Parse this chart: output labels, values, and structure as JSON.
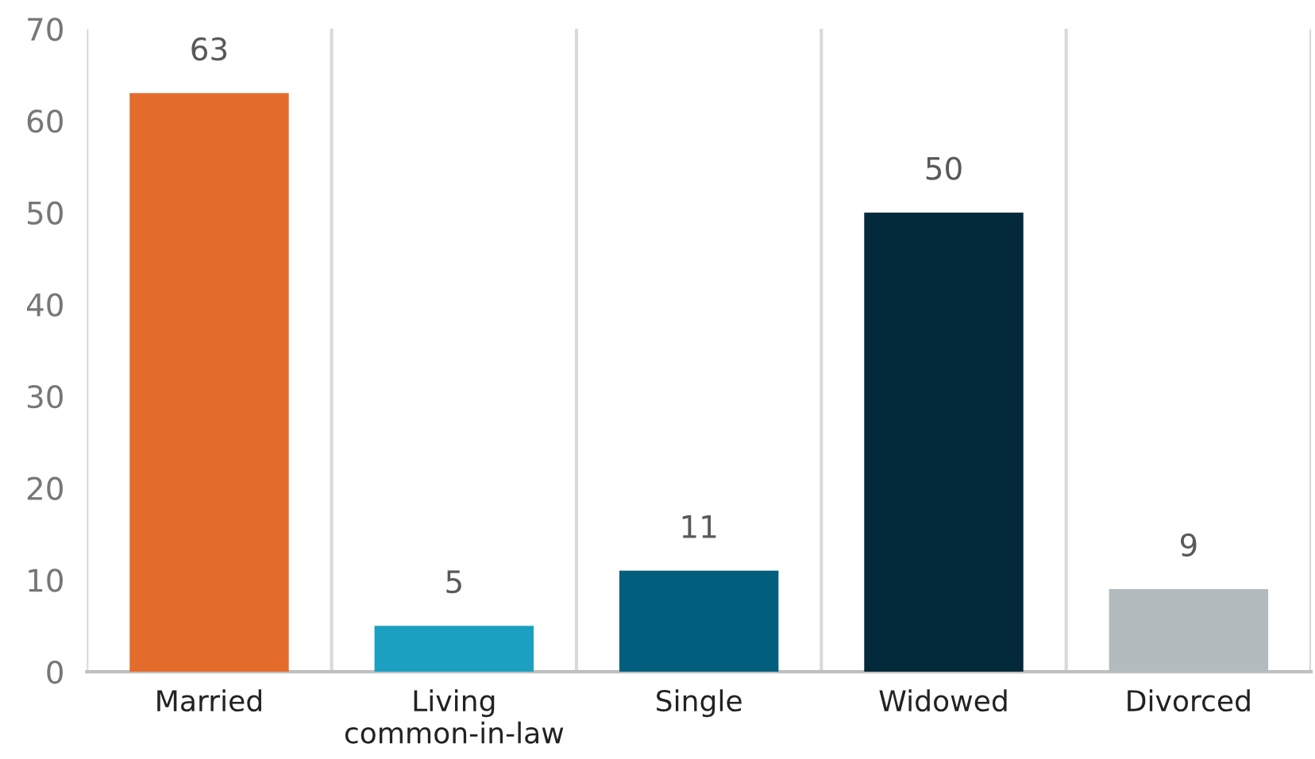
{
  "chart_data": {
    "type": "bar",
    "categories": [
      "Married",
      "Living\ncommon-in-law",
      "Single",
      "Widowed",
      "Divorced"
    ],
    "values": [
      63,
      5,
      11,
      50,
      9
    ],
    "colors": [
      "#e36c2c",
      "#1ba0c1",
      "#015e7c",
      "#022a3a",
      "#b4bbbe"
    ],
    "ylim": [
      0,
      70
    ],
    "yticks": [
      0,
      10,
      20,
      30,
      40,
      50,
      60,
      70
    ],
    "grid": "x",
    "data_labels": true
  }
}
